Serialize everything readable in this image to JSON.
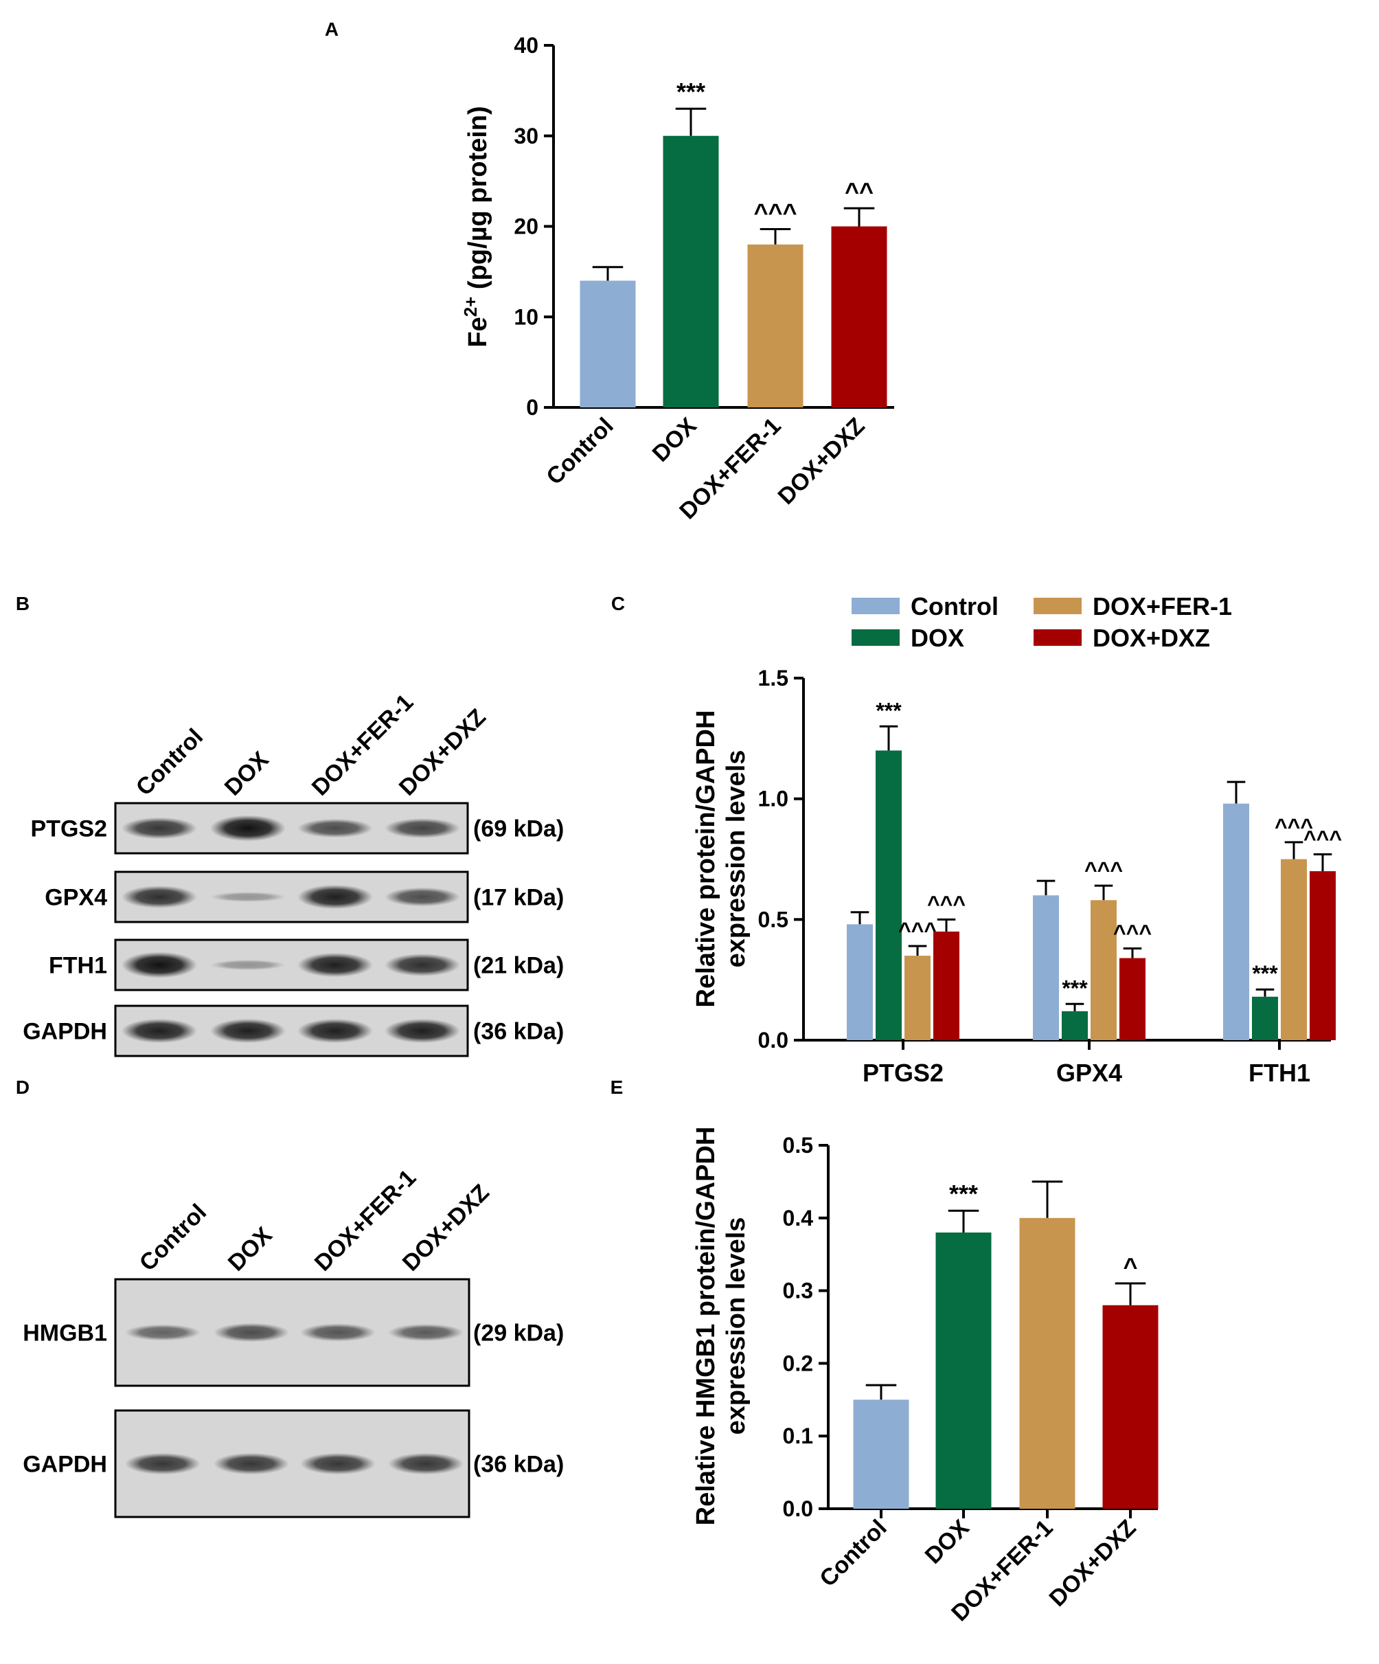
{
  "colors": {
    "Control": "#8EADD3",
    "DOX": "#066C41",
    "DOX+FER-1": "#C8954F",
    "DOX+DXZ": "#A50000"
  },
  "panel_labels": [
    "A",
    "B",
    "C",
    "D",
    "E"
  ],
  "chart_data": [
    {
      "id": "A",
      "type": "bar",
      "title": "",
      "categories": [
        "Control",
        "DOX",
        "DOX+FER-1",
        "DOX+DXZ"
      ],
      "values": [
        14,
        30,
        18,
        20
      ],
      "errors": [
        1.5,
        3.0,
        1.7,
        2.0
      ],
      "annotations": [
        "",
        "***",
        "^^^",
        "^^"
      ],
      "ylabel_main": "Fe",
      "ylabel_sup": "2+",
      "ylabel_rest": " (pg/µg protein)",
      "ylim": [
        0,
        40
      ],
      "yticks": [
        "0",
        "10",
        "20",
        "30",
        "40"
      ],
      "grid": false
    },
    {
      "id": "C",
      "type": "bar",
      "title": "",
      "categories": [
        "PTGS2",
        "GPX4",
        "FTH1"
      ],
      "series": [
        {
          "name": "Control",
          "values": [
            0.48,
            0.6,
            0.98
          ],
          "errors": [
            0.05,
            0.06,
            0.09
          ],
          "annotations": [
            "",
            "",
            ""
          ]
        },
        {
          "name": "DOX",
          "values": [
            1.2,
            0.12,
            0.18
          ],
          "errors": [
            0.1,
            0.03,
            0.03
          ],
          "annotations": [
            "***",
            "***",
            "***"
          ]
        },
        {
          "name": "DOX+FER-1",
          "values": [
            0.35,
            0.58,
            0.75
          ],
          "errors": [
            0.04,
            0.06,
            0.07
          ],
          "annotations": [
            "^^^",
            "^^^",
            "^^^"
          ]
        },
        {
          "name": "DOX+DXZ",
          "values": [
            0.45,
            0.34,
            0.7
          ],
          "errors": [
            0.05,
            0.04,
            0.07
          ],
          "annotations": [
            "^^^",
            "^^^",
            "^^^"
          ]
        }
      ],
      "ylabel_lines": [
        "Relative protein/GAPDH",
        "expression levels"
      ],
      "ylim": [
        0,
        1.5
      ],
      "yticks": [
        "0.0",
        "0.5",
        "1.0",
        "1.5"
      ],
      "legend_position": "top",
      "grid": false
    },
    {
      "id": "E",
      "type": "bar",
      "title": "",
      "categories": [
        "Control",
        "DOX",
        "DOX+FER-1",
        "DOX+DXZ"
      ],
      "values": [
        0.15,
        0.38,
        0.4,
        0.28
      ],
      "errors": [
        0.02,
        0.03,
        0.05,
        0.03
      ],
      "annotations": [
        "",
        "***",
        "",
        "^"
      ],
      "ylabel_lines": [
        "Relative HMGB1 protein/GAPDH",
        "expression levels"
      ],
      "ylim": [
        0,
        0.5
      ],
      "yticks": [
        "0.0",
        "0.1",
        "0.2",
        "0.3",
        "0.4",
        "0.5"
      ],
      "grid": false
    }
  ],
  "blot_B": {
    "lanes": [
      "Control",
      "DOX",
      "DOX+FER-1",
      "DOX+DXZ"
    ],
    "rows": [
      {
        "name": "PTGS2",
        "kda": "(69 kDa)",
        "intensity": [
          0.75,
          1.0,
          0.6,
          0.65
        ]
      },
      {
        "name": "GPX4",
        "kda": "(17 kDa)",
        "intensity": [
          0.8,
          0.1,
          0.9,
          0.6
        ]
      },
      {
        "name": "FTH1",
        "kda": "(21 kDa)",
        "intensity": [
          1.0,
          0.12,
          0.9,
          0.8
        ]
      },
      {
        "name": "GAPDH",
        "kda": "(36 kDa)",
        "intensity": [
          0.9,
          0.9,
          0.9,
          0.9
        ]
      }
    ]
  },
  "blot_D": {
    "lanes": [
      "Control",
      "DOX",
      "DOX+FER-1",
      "DOX+DXZ"
    ],
    "rows": [
      {
        "name": "HMGB1",
        "kda": "(29 kDa)",
        "intensity": [
          0.45,
          0.6,
          0.55,
          0.5
        ]
      },
      {
        "name": "GAPDH",
        "kda": "(36 kDa)",
        "intensity": [
          0.75,
          0.75,
          0.75,
          0.75
        ]
      }
    ]
  }
}
